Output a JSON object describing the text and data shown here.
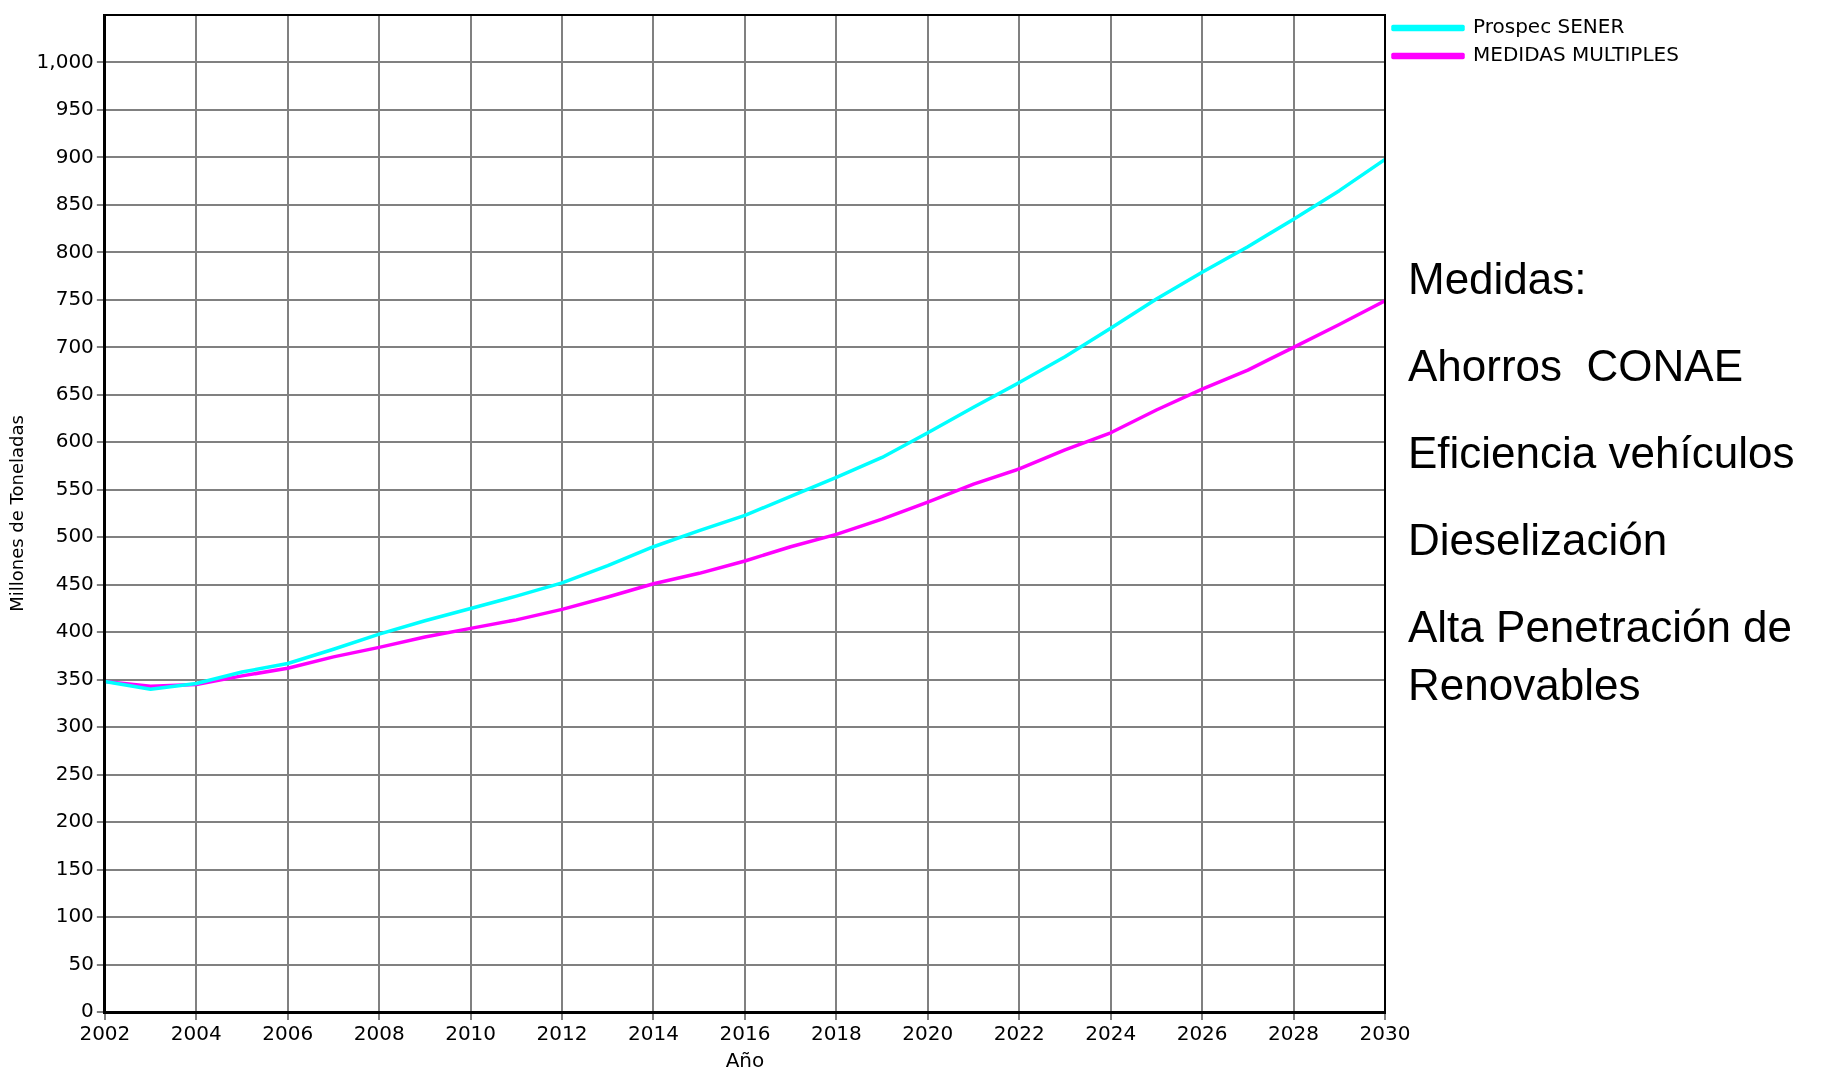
{
  "chart_data": {
    "type": "line",
    "xlabel": "Año",
    "ylabel": "Millones de Toneladas",
    "x": [
      2002,
      2003,
      2004,
      2005,
      2006,
      2007,
      2008,
      2009,
      2010,
      2011,
      2012,
      2013,
      2014,
      2015,
      2016,
      2017,
      2018,
      2019,
      2020,
      2021,
      2022,
      2023,
      2024,
      2025,
      2026,
      2027,
      2028,
      2029,
      2030
    ],
    "series": [
      {
        "name": "Prospec SENER",
        "color": "#00ffff",
        "values": [
          348,
          340,
          346,
          358,
          367,
          382,
          398,
          412,
          425,
          438,
          452,
          470,
          490,
          507,
          523,
          543,
          563,
          584,
          610,
          637,
          663,
          690,
          720,
          751,
          779,
          806,
          835,
          865,
          898
        ]
      },
      {
        "name": "MEDIDAS MULTIPLES",
        "color": "#ff00ff",
        "values": [
          348,
          343,
          345,
          354,
          362,
          374,
          384,
          395,
          404,
          413,
          424,
          437,
          451,
          462,
          475,
          490,
          503,
          519,
          537,
          556,
          572,
          592,
          610,
          634,
          656,
          676,
          700,
          724,
          749
        ]
      }
    ],
    "xlim": [
      2002,
      2030
    ],
    "xticks": [
      2002,
      2004,
      2006,
      2008,
      2010,
      2012,
      2014,
      2016,
      2018,
      2020,
      2022,
      2024,
      2026,
      2028,
      2030
    ],
    "ylim": [
      0,
      1050
    ],
    "yticks": [
      0,
      50,
      100,
      150,
      200,
      250,
      300,
      350,
      400,
      450,
      500,
      550,
      600,
      650,
      700,
      750,
      800,
      850,
      900,
      950,
      {
        "value": 1000,
        "label": "1,000"
      }
    ],
    "grid": true,
    "legend": "top right",
    "marker": "none",
    "line_style": "solid",
    "annotations": [
      "Medidas:",
      "Ahorros  CONAE",
      "Eficiencia vehículos",
      "Dieselización",
      "Alta Penetración de Renovables"
    ]
  }
}
